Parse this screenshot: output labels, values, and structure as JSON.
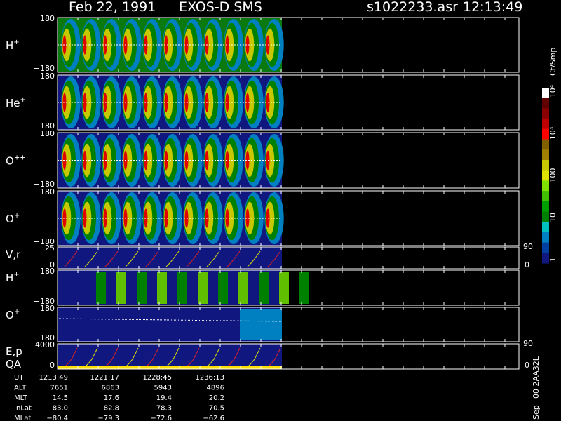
{
  "header": {
    "date": "Feb 22, 1991",
    "instrument": "EXOS-D SMS",
    "file": "s1022233.asr",
    "time": "12:13:49"
  },
  "panels": [
    {
      "label": "H",
      "sup": "+",
      "top": "180",
      "bottom": "−180"
    },
    {
      "label": "He",
      "sup": "+",
      "top": "180",
      "bottom": "−180"
    },
    {
      "label": "O",
      "sup": "++",
      "top": "180",
      "bottom": "−180"
    },
    {
      "label": "O",
      "sup": "+",
      "top": "180",
      "bottom": "−180"
    },
    {
      "label": "V,r",
      "top": "25",
      "bottom": "0",
      "right_top": "90",
      "right_bottom": "0"
    },
    {
      "label": "H",
      "sup": "+",
      "top": "180",
      "bottom": "−180"
    },
    {
      "label": "O",
      "sup": "+",
      "top": "180",
      "bottom": "−180"
    },
    {
      "label": "E,p",
      "label2": "QA",
      "top": "4000",
      "bottom": "0",
      "right_top": "90",
      "right_bottom": "0"
    }
  ],
  "colorbar": {
    "unit": "Ct/Smp",
    "labels": [
      "10⁴",
      "10³",
      "100",
      "10",
      "1"
    ]
  },
  "table": {
    "rows": [
      [
        "UT",
        "1213:49",
        "1221:17",
        "1228:45",
        "1236:13"
      ],
      [
        "ALT",
        "7651",
        "6863",
        "5943",
        "4896"
      ],
      [
        "MLT",
        "14.5",
        "17.6",
        "19.4",
        "20.2"
      ],
      [
        "InLat",
        "83.0",
        "82.8",
        "78.3",
        "70.5"
      ],
      [
        "MLat",
        "−80.4",
        "−79.3",
        "−72.6",
        "−62.6"
      ]
    ]
  },
  "footer": {
    "version": "Sep−00 2AA32L"
  }
}
